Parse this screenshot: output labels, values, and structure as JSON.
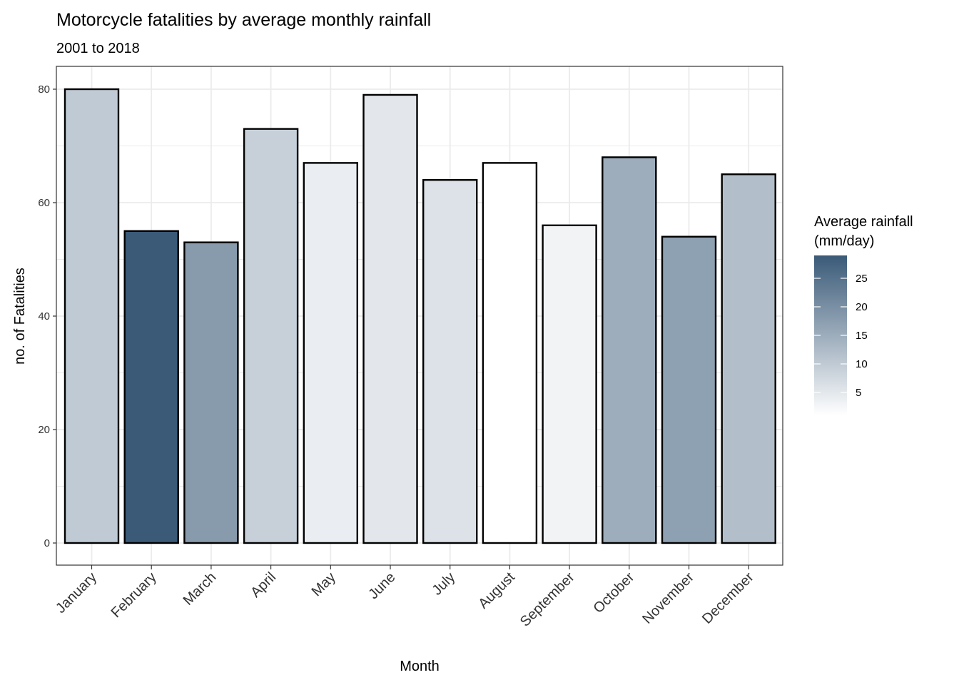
{
  "chart_data": {
    "type": "bar",
    "title": "Motorcycle fatalities by average monthly rainfall",
    "subtitle": "2001 to 2018",
    "xlabel": "Month",
    "ylabel": "no. of Fatalities",
    "categories": [
      "January",
      "February",
      "March",
      "April",
      "May",
      "June",
      "July",
      "August",
      "September",
      "October",
      "November",
      "December"
    ],
    "values": [
      80,
      55,
      53,
      73,
      67,
      79,
      64,
      67,
      56,
      68,
      54,
      65
    ],
    "rainfall": [
      10,
      29,
      18,
      9,
      4,
      5,
      6,
      1,
      3,
      15,
      17,
      12
    ],
    "ylim": [
      -4,
      84
    ],
    "yticks": [
      0,
      20,
      40,
      60,
      80
    ],
    "grid": true,
    "legend": {
      "title_line1": "Average rainfall",
      "title_line2": "(mm/day)",
      "placement": "right",
      "range": [
        1,
        29
      ],
      "ticks": [
        5,
        10,
        15,
        20,
        25
      ],
      "color_low": "#ffffff",
      "color_high": "#3a5a78"
    },
    "bar_outline": "#000000",
    "grid_color": "#ebebeb"
  }
}
